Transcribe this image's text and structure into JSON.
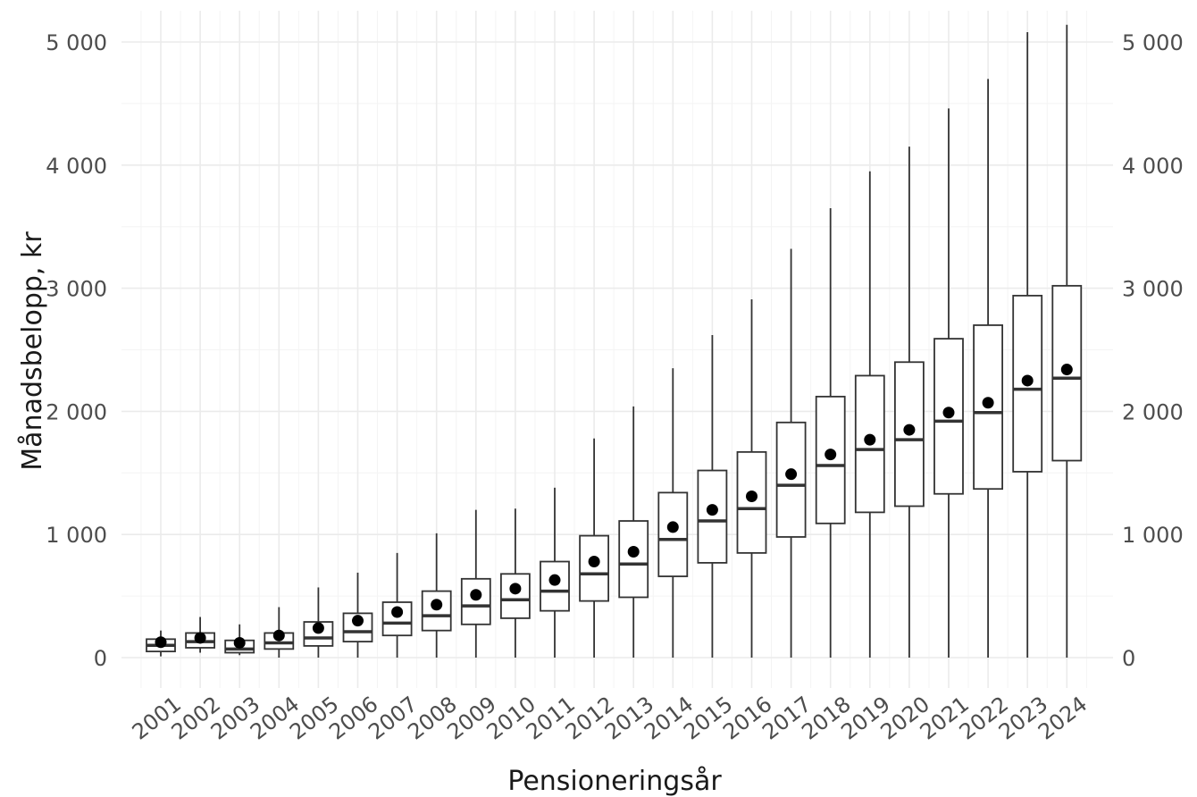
{
  "chart_data": {
    "type": "boxplot",
    "title": "",
    "xlabel": "Pensioneringsår",
    "ylabel": "Månadsbelopp, kr",
    "ylim": [
      0,
      5150
    ],
    "y_ticks": [
      0,
      1000,
      2000,
      3000,
      4000,
      5000
    ],
    "y_tick_labels": [
      "0",
      "1 000",
      "2 000",
      "3 000",
      "4 000",
      "5 000"
    ],
    "secondary_y_axis": true,
    "grid": true,
    "legend": "none",
    "categories": [
      "2001",
      "2002",
      "2003",
      "2004",
      "2005",
      "2006",
      "2007",
      "2008",
      "2009",
      "2010",
      "2011",
      "2012",
      "2013",
      "2014",
      "2015",
      "2016",
      "2017",
      "2018",
      "2019",
      "2020",
      "2021",
      "2022",
      "2023",
      "2024"
    ],
    "series": [
      {
        "boxes": [
          {
            "whisker_low": 10,
            "q1": 50,
            "median": 100,
            "q3": 150,
            "whisker_high": 220,
            "mean": 125
          },
          {
            "whisker_low": 40,
            "q1": 80,
            "median": 130,
            "q3": 200,
            "whisker_high": 330,
            "mean": 160
          },
          {
            "whisker_low": 20,
            "q1": 40,
            "median": 70,
            "q3": 140,
            "whisker_high": 270,
            "mean": 120
          },
          {
            "whisker_low": 0,
            "q1": 70,
            "median": 120,
            "q3": 200,
            "whisker_high": 410,
            "mean": 180
          },
          {
            "whisker_low": 0,
            "q1": 95,
            "median": 160,
            "q3": 290,
            "whisker_high": 570,
            "mean": 240
          },
          {
            "whisker_low": 0,
            "q1": 130,
            "median": 210,
            "q3": 360,
            "whisker_high": 690,
            "mean": 300
          },
          {
            "whisker_low": 0,
            "q1": 180,
            "median": 280,
            "q3": 450,
            "whisker_high": 850,
            "mean": 370
          },
          {
            "whisker_low": 0,
            "q1": 220,
            "median": 340,
            "q3": 540,
            "whisker_high": 1010,
            "mean": 430
          },
          {
            "whisker_low": 0,
            "q1": 270,
            "median": 420,
            "q3": 640,
            "whisker_high": 1200,
            "mean": 510
          },
          {
            "whisker_low": 0,
            "q1": 320,
            "median": 470,
            "q3": 680,
            "whisker_high": 1210,
            "mean": 560
          },
          {
            "whisker_low": 0,
            "q1": 380,
            "median": 540,
            "q3": 780,
            "whisker_high": 1380,
            "mean": 630
          },
          {
            "whisker_low": 0,
            "q1": 460,
            "median": 680,
            "q3": 990,
            "whisker_high": 1780,
            "mean": 780
          },
          {
            "whisker_low": 0,
            "q1": 490,
            "median": 760,
            "q3": 1110,
            "whisker_high": 2040,
            "mean": 860
          },
          {
            "whisker_low": 0,
            "q1": 660,
            "median": 960,
            "q3": 1340,
            "whisker_high": 2350,
            "mean": 1060
          },
          {
            "whisker_low": 0,
            "q1": 770,
            "median": 1110,
            "q3": 1520,
            "whisker_high": 2620,
            "mean": 1200
          },
          {
            "whisker_low": 0,
            "q1": 850,
            "median": 1210,
            "q3": 1670,
            "whisker_high": 2910,
            "mean": 1310
          },
          {
            "whisker_low": 0,
            "q1": 980,
            "median": 1400,
            "q3": 1910,
            "whisker_high": 3320,
            "mean": 1490
          },
          {
            "whisker_low": 0,
            "q1": 1090,
            "median": 1560,
            "q3": 2120,
            "whisker_high": 3650,
            "mean": 1650
          },
          {
            "whisker_low": 0,
            "q1": 1180,
            "median": 1690,
            "q3": 2290,
            "whisker_high": 3950,
            "mean": 1770
          },
          {
            "whisker_low": 0,
            "q1": 1230,
            "median": 1770,
            "q3": 2400,
            "whisker_high": 4150,
            "mean": 1850
          },
          {
            "whisker_low": 0,
            "q1": 1330,
            "median": 1920,
            "q3": 2590,
            "whisker_high": 4460,
            "mean": 1990
          },
          {
            "whisker_low": 0,
            "q1": 1370,
            "median": 1990,
            "q3": 2700,
            "whisker_high": 4700,
            "mean": 2070
          },
          {
            "whisker_low": 0,
            "q1": 1510,
            "median": 2180,
            "q3": 2940,
            "whisker_high": 5080,
            "mean": 2250
          },
          {
            "whisker_low": 0,
            "q1": 1600,
            "median": 2270,
            "q3": 3020,
            "whisker_high": 5140,
            "mean": 2340
          }
        ]
      }
    ]
  }
}
